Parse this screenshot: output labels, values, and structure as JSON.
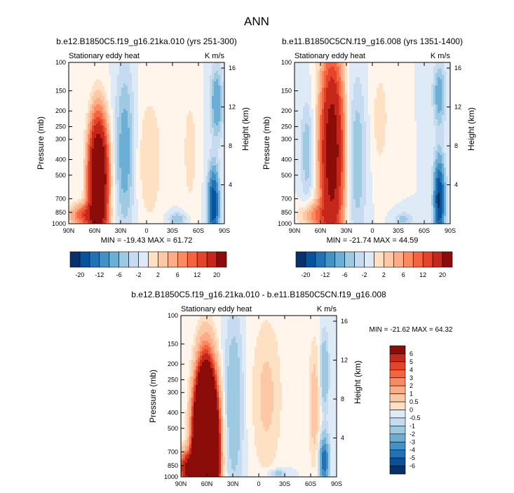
{
  "figure": {
    "title": "ANN"
  },
  "colors": {
    "scale": [
      "#08306b",
      "#08519c",
      "#2171b5",
      "#4292c6",
      "#6baed6",
      "#9ecae1",
      "#c6dbef",
      "#deebf7",
      "#fff5eb",
      "#fee0c2",
      "#fdc8a5",
      "#fcad88",
      "#fb8a61",
      "#f5643f",
      "#e5432a",
      "#c5281a",
      "#8b0c08"
    ]
  },
  "chart_data": [
    {
      "type": "heatmap",
      "title": "b.e12.B1850C5.f19_g16.21ka.010 (yrs 251-300)",
      "left_subtitle": "Stationary eddy heat",
      "right_subtitle": "K m/s",
      "ylabel": "Pressure (mb)",
      "y2label": "Height (km)",
      "xticks": [
        "90N",
        "60N",
        "30N",
        "0",
        "30S",
        "60S",
        "90S"
      ],
      "yticks": [
        "100",
        "150",
        "200",
        "250",
        "300",
        "400",
        "500",
        "700",
        "850",
        "1000"
      ],
      "y2ticks": [
        "16",
        "12",
        "8",
        "4"
      ],
      "stats": "MIN = -19.43  MAX = 61.72",
      "colorbar_labels": [
        "-20",
        "-12",
        "-6",
        "-2",
        "2",
        "6",
        "12",
        "20"
      ],
      "colorbar_orientation": "horizontal"
    },
    {
      "type": "heatmap",
      "title": "b.e11.B1850C5CN.f19_g16.008 (yrs 1351-1400)",
      "left_subtitle": "Stationary eddy heat",
      "right_subtitle": "K m/s",
      "ylabel": "Pressure (mb)",
      "y2label": "Height (km)",
      "xticks": [
        "90N",
        "60N",
        "30N",
        "0",
        "30S",
        "60S",
        "90S"
      ],
      "yticks": [
        "100",
        "150",
        "200",
        "250",
        "300",
        "400",
        "500",
        "700",
        "850",
        "1000"
      ],
      "y2ticks": [
        "16",
        "12",
        "8",
        "4"
      ],
      "stats": "MIN = -21.74  MAX = 44.59",
      "colorbar_labels": [
        "-20",
        "-12",
        "-6",
        "-2",
        "2",
        "6",
        "12",
        "20"
      ],
      "colorbar_orientation": "horizontal"
    },
    {
      "type": "heatmap",
      "title": "b.e12.B1850C5.f19_g16.21ka.010 - b.e11.B1850C5CN.f19_g16.008",
      "left_subtitle": "Stationary eddy heat",
      "right_subtitle": "K m/s",
      "ylabel": "Pressure (mb)",
      "y2label": "Height (km)",
      "xticks": [
        "90N",
        "60N",
        "30N",
        "0",
        "30S",
        "60S",
        "90S"
      ],
      "yticks": [
        "100",
        "150",
        "200",
        "250",
        "300",
        "400",
        "500",
        "700",
        "850",
        "1000"
      ],
      "y2ticks": [
        "16",
        "12",
        "8",
        "4"
      ],
      "stats": "MIN = -21.62  MAX = 64.32",
      "colorbar_labels": [
        "6",
        "5",
        "4",
        "3",
        "2",
        "1",
        "0.5",
        "0",
        "-0.5",
        "-1",
        "-2",
        "-3",
        "-4",
        "-5",
        "-6"
      ],
      "colorbar_orientation": "vertical"
    }
  ]
}
